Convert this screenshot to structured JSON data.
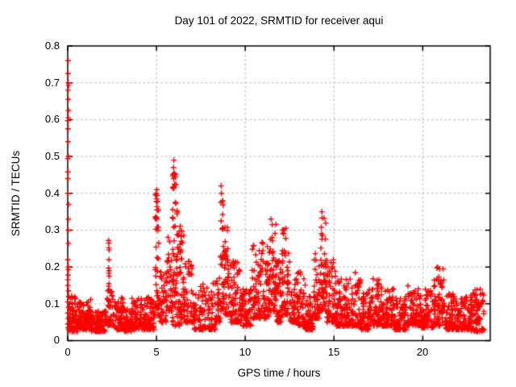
{
  "chart_data": {
    "type": "scatter",
    "title": "Day 101 of 2022, SRMTID for receiver aqui",
    "xlabel": "GPS time / hours",
    "ylabel": "SRMTID / TECUs",
    "xlim": [
      0,
      23.8
    ],
    "ylim": [
      0,
      0.8
    ],
    "xticks": [
      0,
      5,
      10,
      15,
      20
    ],
    "yticks": [
      0,
      0.1,
      0.2,
      0.3,
      0.4,
      0.5,
      0.6,
      0.7,
      0.8
    ],
    "xtick_labels": [
      "0",
      "5",
      "10",
      "15",
      "20"
    ],
    "ytick_labels": [
      "0",
      "0.1",
      "0.2",
      "0.3",
      "0.4",
      "0.5",
      "0.6",
      "0.7",
      "0.8"
    ],
    "grid": true,
    "grid_style": "dashed",
    "legend": "none",
    "marker": "plus",
    "marker_size_px": 7,
    "marker_color": "#ff0000",
    "grid_color": "#b0b0b0",
    "axis_color": "#000000",
    "background": "#ffffff",
    "seed": 20220101,
    "startup_column": {
      "x_max_jitter": 0.05,
      "values": [
        0.76,
        0.725,
        0.7,
        0.693,
        0.68,
        0.655,
        0.625,
        0.605,
        0.597,
        0.575,
        0.54,
        0.5,
        0.494,
        0.458,
        0.44,
        0.4,
        0.37,
        0.33,
        0.3,
        0.264,
        0.22,
        0.2,
        0.193,
        0.178,
        0.165,
        0.15,
        0.135,
        0.12,
        0.105,
        0.09,
        0.075,
        0.06,
        0.045,
        0.035
      ]
    },
    "peak_points": [
      [
        2.3,
        0.272
      ],
      [
        2.32,
        0.265
      ],
      [
        2.31,
        0.252
      ],
      [
        2.33,
        0.246
      ],
      [
        2.32,
        0.22
      ],
      [
        2.3,
        0.197
      ],
      [
        2.33,
        0.19
      ],
      [
        2.31,
        0.183
      ],
      [
        2.34,
        0.175
      ],
      [
        2.32,
        0.155
      ],
      [
        2.3,
        0.148
      ],
      [
        2.33,
        0.138
      ],
      [
        5.02,
        0.41
      ],
      [
        5.0,
        0.385
      ],
      [
        5.03,
        0.355
      ],
      [
        5.01,
        0.33
      ],
      [
        5.98,
        0.49
      ],
      [
        5.96,
        0.47
      ],
      [
        6.0,
        0.455
      ],
      [
        5.97,
        0.44
      ],
      [
        6.02,
        0.425
      ],
      [
        8.64,
        0.42
      ],
      [
        8.66,
        0.4
      ],
      [
        8.62,
        0.375
      ],
      [
        11.45,
        0.33
      ],
      [
        11.52,
        0.315
      ],
      [
        12.1,
        0.3
      ],
      [
        14.32,
        0.35
      ],
      [
        14.45,
        0.332
      ],
      [
        16.2,
        0.185
      ],
      [
        20.95,
        0.195
      ]
    ],
    "bands_key": [
      "x_start",
      "x_end",
      "n_points",
      "y_min",
      "y_max",
      "skew"
    ],
    "bands": [
      [
        0.03,
        0.55,
        70,
        0.025,
        0.125,
        2.0
      ],
      [
        0.55,
        1.3,
        90,
        0.03,
        0.115,
        1.8
      ],
      [
        1.3,
        2.1,
        95,
        0.025,
        0.08,
        1.6
      ],
      [
        2.1,
        2.65,
        45,
        0.04,
        0.14,
        2.0
      ],
      [
        2.65,
        3.2,
        60,
        0.03,
        0.12,
        1.7
      ],
      [
        3.2,
        3.6,
        40,
        0.025,
        0.085,
        1.6
      ],
      [
        3.6,
        4.35,
        80,
        0.03,
        0.115,
        1.8
      ],
      [
        4.35,
        4.9,
        55,
        0.03,
        0.12,
        1.8
      ],
      [
        4.9,
        5.15,
        40,
        0.07,
        0.4,
        1.6
      ],
      [
        5.15,
        5.55,
        40,
        0.05,
        0.2,
        1.8
      ],
      [
        5.55,
        5.9,
        40,
        0.08,
        0.3,
        1.7
      ],
      [
        5.9,
        6.2,
        45,
        0.12,
        0.47,
        1.5
      ],
      [
        5.9,
        6.45,
        25,
        0.04,
        0.11,
        1.5
      ],
      [
        6.2,
        6.55,
        45,
        0.08,
        0.35,
        1.8
      ],
      [
        6.55,
        7.1,
        55,
        0.05,
        0.22,
        1.9
      ],
      [
        7.1,
        8.35,
        120,
        0.03,
        0.16,
        2.0
      ],
      [
        8.35,
        8.6,
        30,
        0.05,
        0.18,
        1.8
      ],
      [
        8.6,
        8.8,
        35,
        0.08,
        0.4,
        1.6
      ],
      [
        8.8,
        9.05,
        35,
        0.07,
        0.33,
        1.8
      ],
      [
        9.05,
        9.7,
        75,
        0.05,
        0.22,
        1.9
      ],
      [
        9.7,
        10.35,
        70,
        0.04,
        0.14,
        1.7
      ],
      [
        10.35,
        11.0,
        70,
        0.06,
        0.28,
        1.9
      ],
      [
        11.0,
        11.35,
        45,
        0.06,
        0.26,
        1.9
      ],
      [
        11.35,
        11.75,
        50,
        0.08,
        0.32,
        1.8
      ],
      [
        11.75,
        12.05,
        40,
        0.05,
        0.22,
        1.9
      ],
      [
        12.05,
        12.5,
        55,
        0.07,
        0.31,
        1.8
      ],
      [
        12.5,
        13.0,
        55,
        0.05,
        0.2,
        2.0
      ],
      [
        13.0,
        13.4,
        45,
        0.04,
        0.19,
        2.0
      ],
      [
        13.4,
        13.85,
        45,
        0.03,
        0.12,
        1.8
      ],
      [
        13.85,
        14.2,
        45,
        0.06,
        0.25,
        1.9
      ],
      [
        14.2,
        14.6,
        55,
        0.08,
        0.34,
        1.7
      ],
      [
        14.6,
        15.1,
        55,
        0.05,
        0.25,
        2.0
      ],
      [
        15.1,
        15.5,
        50,
        0.04,
        0.17,
        1.9
      ],
      [
        15.5,
        16.5,
        110,
        0.04,
        0.18,
        1.9
      ],
      [
        16.5,
        17.0,
        55,
        0.03,
        0.13,
        1.8
      ],
      [
        17.0,
        17.6,
        65,
        0.04,
        0.17,
        1.9
      ],
      [
        17.6,
        18.4,
        90,
        0.04,
        0.16,
        1.9
      ],
      [
        18.4,
        19.1,
        75,
        0.03,
        0.12,
        1.8
      ],
      [
        19.1,
        19.8,
        75,
        0.04,
        0.15,
        1.9
      ],
      [
        19.8,
        20.6,
        85,
        0.035,
        0.14,
        1.9
      ],
      [
        20.6,
        21.2,
        70,
        0.04,
        0.2,
        2.1
      ],
      [
        21.2,
        22.0,
        85,
        0.03,
        0.13,
        1.9
      ],
      [
        22.0,
        22.7,
        75,
        0.03,
        0.12,
        1.9
      ],
      [
        22.7,
        23.45,
        80,
        0.025,
        0.14,
        2.0
      ]
    ]
  }
}
